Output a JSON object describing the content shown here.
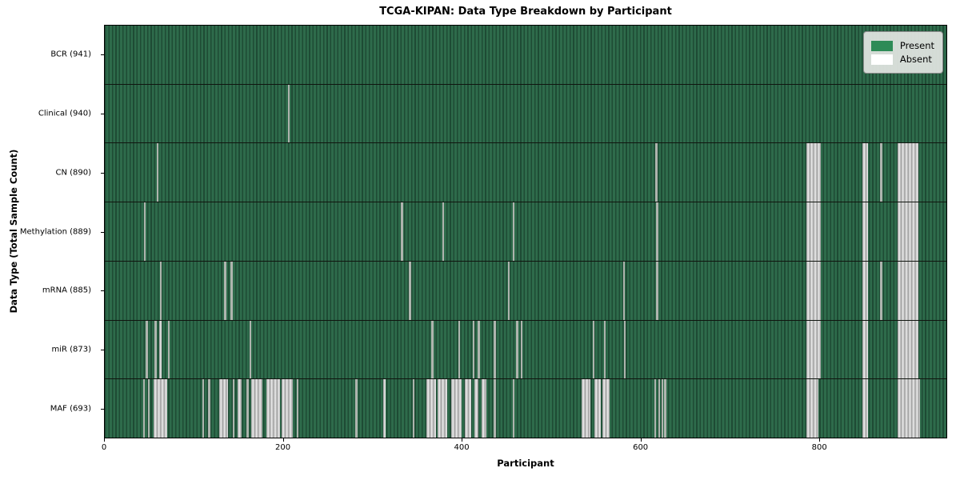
{
  "title": "TCGA-KIPAN: Data Type Breakdown by Participant",
  "legend": {
    "items": [
      {
        "label": "Present",
        "color": "#2e8b57"
      },
      {
        "label": "Absent",
        "color": "#ffffff"
      }
    ]
  },
  "chart_data": {
    "type": "heatmap",
    "title": "TCGA-KIPAN: Data Type Breakdown by Participant",
    "xlabel": "Participant",
    "ylabel": "Data Type (Total Sample Count)",
    "x_range": [
      0,
      943
    ],
    "x_ticks": [
      0,
      200,
      400,
      600,
      800
    ],
    "legend_position": "upper right",
    "grid": false,
    "colors": {
      "present": "#2e8b57",
      "absent": "#ffffff"
    },
    "rows": [
      {
        "label": "BCR (941)",
        "data_type": "BCR",
        "count": 941,
        "absent_ranges": []
      },
      {
        "label": "Clinical (940)",
        "data_type": "Clinical",
        "count": 940,
        "absent_ranges": [
          [
            205,
            207
          ]
        ]
      },
      {
        "label": "CN (890)",
        "data_type": "CN",
        "count": 890,
        "absent_ranges": [
          [
            58,
            60
          ],
          [
            617,
            619
          ],
          [
            786,
            802
          ],
          [
            849,
            855
          ],
          [
            869,
            871
          ],
          [
            888,
            912
          ]
        ]
      },
      {
        "label": "Methylation (889)",
        "data_type": "Methylation",
        "count": 889,
        "absent_ranges": [
          [
            44,
            46
          ],
          [
            332,
            334
          ],
          [
            378,
            380
          ],
          [
            457,
            459
          ],
          [
            618,
            620
          ],
          [
            786,
            802
          ],
          [
            849,
            855
          ],
          [
            888,
            912
          ]
        ]
      },
      {
        "label": "mRNA (885)",
        "data_type": "mRNA",
        "count": 885,
        "absent_ranges": [
          [
            62,
            64
          ],
          [
            134,
            136
          ],
          [
            141,
            143
          ],
          [
            341,
            343
          ],
          [
            452,
            454
          ],
          [
            581,
            583
          ],
          [
            618,
            620
          ],
          [
            786,
            802
          ],
          [
            849,
            855
          ],
          [
            869,
            871
          ],
          [
            888,
            912
          ]
        ]
      },
      {
        "label": "miR (873)",
        "data_type": "miR",
        "count": 873,
        "absent_ranges": [
          [
            46,
            48
          ],
          [
            56,
            58
          ],
          [
            61,
            64
          ],
          [
            71,
            73
          ],
          [
            162,
            164
          ],
          [
            366,
            368
          ],
          [
            396,
            398
          ],
          [
            412,
            414
          ],
          [
            418,
            420
          ],
          [
            436,
            438
          ],
          [
            461,
            463
          ],
          [
            466,
            468
          ],
          [
            547,
            549
          ],
          [
            559,
            561
          ],
          [
            582,
            584
          ],
          [
            786,
            802
          ],
          [
            849,
            855
          ],
          [
            888,
            912
          ]
        ]
      },
      {
        "label": "MAF (693)",
        "data_type": "MAF",
        "count": 693,
        "absent_ranges": [
          [
            43,
            45
          ],
          [
            48,
            50
          ],
          [
            55,
            70
          ],
          [
            109,
            111
          ],
          [
            116,
            118
          ],
          [
            128,
            138
          ],
          [
            143,
            145
          ],
          [
            149,
            153
          ],
          [
            159,
            161
          ],
          [
            164,
            177
          ],
          [
            181,
            196
          ],
          [
            198,
            211
          ],
          [
            215,
            217
          ],
          [
            281,
            283
          ],
          [
            312,
            315
          ],
          [
            345,
            347
          ],
          [
            360,
            371
          ],
          [
            373,
            384
          ],
          [
            388,
            400
          ],
          [
            403,
            411
          ],
          [
            414,
            419
          ],
          [
            422,
            428
          ],
          [
            436,
            438
          ],
          [
            457,
            459
          ],
          [
            534,
            544
          ],
          [
            549,
            556
          ],
          [
            558,
            566
          ],
          [
            616,
            618
          ],
          [
            620,
            622
          ],
          [
            624,
            626
          ],
          [
            627,
            629
          ],
          [
            786,
            800
          ],
          [
            849,
            855
          ],
          [
            888,
            913
          ]
        ]
      }
    ]
  }
}
